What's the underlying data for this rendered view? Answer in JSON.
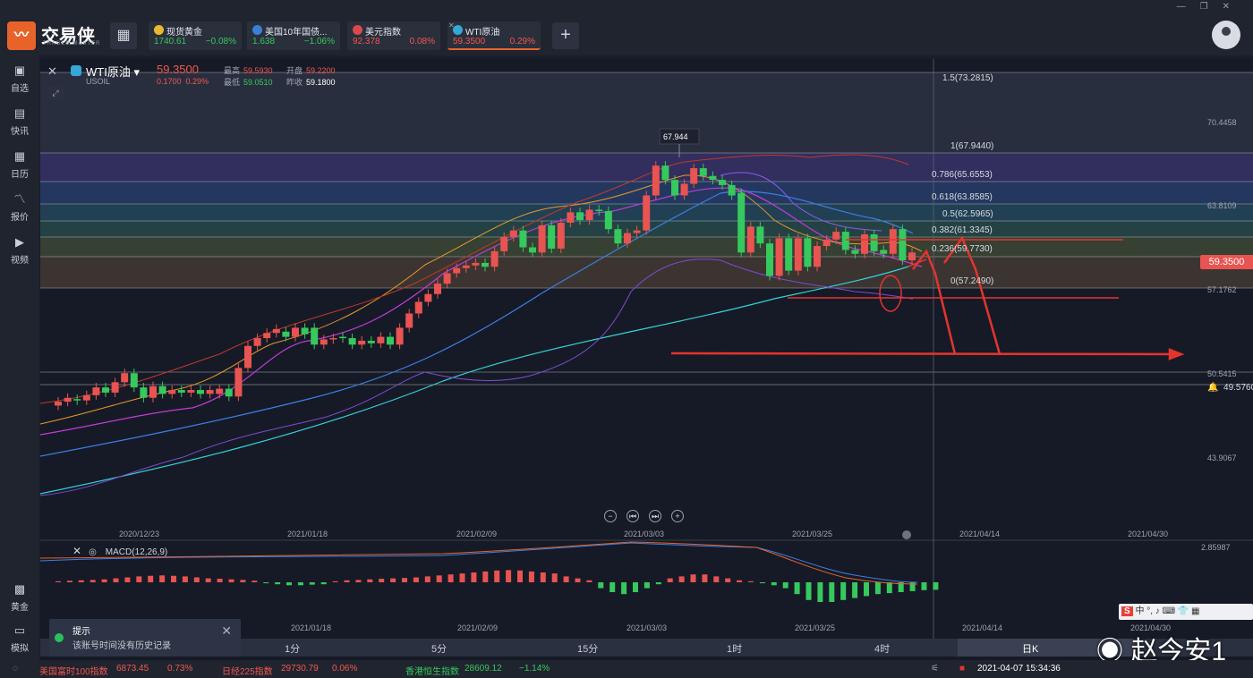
{
  "app": {
    "name": "交易侠",
    "subtitle": "TRADER MASTER"
  },
  "tabs": [
    {
      "name": "现货黄金",
      "price": "1740.61",
      "change": "−0.08%",
      "price_color": "#36c95d",
      "change_color": "#36c95d",
      "icon_color": "#e8b833",
      "active": false
    },
    {
      "name": "美国10年国债...",
      "price": "1.638",
      "change": "−1.06%",
      "price_color": "#36c95d",
      "change_color": "#36c95d",
      "icon_color": "#3b7fd6",
      "active": false
    },
    {
      "name": "美元指数",
      "price": "92.378",
      "change": "0.08%",
      "price_color": "#f0584e",
      "change_color": "#f0584e",
      "icon_color": "#d84a4a",
      "active": false
    },
    {
      "name": "WTI原油",
      "price": "59.3500",
      "change": "0.29%",
      "price_color": "#f0584e",
      "change_color": "#f0584e",
      "icon_color": "#35a7d8",
      "active": true
    }
  ],
  "sidebar": [
    {
      "label": "自选",
      "icon": "star-bookmark-icon"
    },
    {
      "label": "快讯",
      "icon": "news-icon"
    },
    {
      "label": "日历",
      "icon": "calendar-icon"
    },
    {
      "label": "报价",
      "icon": "quote-chart-icon"
    },
    {
      "label": "视频",
      "icon": "video-icon"
    },
    {
      "label": "黄金",
      "icon": "gold-icon"
    },
    {
      "label": "模拟",
      "icon": "simulate-icon"
    }
  ],
  "header": {
    "symbol": "WTI原油",
    "code": "USOIL",
    "price": "59.3500",
    "change_abs": "0.1700",
    "change_pct": "0.29%",
    "high_label": "最高",
    "high": "59.5930",
    "open_label": "开盘",
    "open": "59.2200",
    "low_label": "最低",
    "low": "59.0510",
    "prev_label": "昨收",
    "prev": "59.1800"
  },
  "price_axis": [
    "70.4458",
    "63.8109",
    "57.1762",
    "50.5415",
    "43.9067"
  ],
  "fib_levels": [
    {
      "label": "1.5(73.2815)"
    },
    {
      "label": "1(67.9440)"
    },
    {
      "label": "0.786(65.6553)"
    },
    {
      "label": "0.618(63.8585)"
    },
    {
      "label": "0.5(62.5965)"
    },
    {
      "label": "0.382(61.3345)"
    },
    {
      "label": "0.236(59.7730)"
    },
    {
      "label": "0(57.2490)"
    }
  ],
  "current_price_tag": "59.3500",
  "alert_price": "49.5760",
  "peak_label": "67.944",
  "dates_main": [
    "2020/12/23",
    "2021/01/18",
    "2021/02/09",
    "2021/03/03",
    "2021/03/25",
    "2021/04/14",
    "2021/04/30"
  ],
  "dates_sub": [
    "2021/01/18",
    "2021/02/09",
    "2021/03/03",
    "2021/03/25",
    "2021/04/14",
    "2021/04/30"
  ],
  "macd": {
    "label": "MACD(12,26,9)",
    "top_value": "2.85987"
  },
  "nav_buttons": [
    "−",
    "⏮",
    "⏭",
    "+"
  ],
  "timeframes": [
    "1分",
    "5分",
    "15分",
    "1时",
    "4时",
    "日K"
  ],
  "toast": {
    "title": "提示",
    "message": "该账号时间没有历史记录"
  },
  "bottom": {
    "items": [
      {
        "name": "美国富时100指数",
        "value": "6873.45",
        "change": "0.73%",
        "color": "#f0584e"
      },
      {
        "name": "日经225指数",
        "value": "29730.79",
        "change": "0.06%",
        "color": "#f0584e"
      },
      {
        "name": "香港恒生指数",
        "value": "28609.12",
        "change": "−1.14%",
        "color": "#36c95d"
      }
    ],
    "datetime": "2021-04-07 15:34:36"
  },
  "watermark": "赵今安1",
  "ime_bar": "中 °, ♪ ⌨ 👕 ▦",
  "chart_data": {
    "type": "candlestick",
    "symbol": "WTI原油",
    "ylim": [
      43.9067,
      73.2815
    ],
    "candles": [
      {
        "o": 47.6,
        "c": 47.9
      },
      {
        "o": 47.9,
        "c": 48.2
      },
      {
        "o": 48.1,
        "c": 48.0
      },
      {
        "o": 48.0,
        "c": 48.4
      },
      {
        "o": 48.4,
        "c": 49.0
      },
      {
        "o": 49.0,
        "c": 48.6
      },
      {
        "o": 48.6,
        "c": 49.4
      },
      {
        "o": 49.4,
        "c": 50.1
      },
      {
        "o": 50.1,
        "c": 49.0
      },
      {
        "o": 49.0,
        "c": 48.2
      },
      {
        "o": 48.2,
        "c": 49.1
      },
      {
        "o": 49.1,
        "c": 48.5
      },
      {
        "o": 48.5,
        "c": 48.8
      },
      {
        "o": 48.8,
        "c": 48.6
      },
      {
        "o": 48.6,
        "c": 48.8
      },
      {
        "o": 48.8,
        "c": 48.5
      },
      {
        "o": 48.5,
        "c": 48.8
      },
      {
        "o": 48.5,
        "c": 48.9
      },
      {
        "o": 48.9,
        "c": 48.3
      },
      {
        "o": 48.3,
        "c": 50.5
      },
      {
        "o": 50.5,
        "c": 52.2
      },
      {
        "o": 52.2,
        "c": 52.8
      },
      {
        "o": 52.8,
        "c": 53.2
      },
      {
        "o": 53.2,
        "c": 53.5
      },
      {
        "o": 53.3,
        "c": 52.9
      },
      {
        "o": 52.9,
        "c": 53.6
      },
      {
        "o": 53.6,
        "c": 53.1
      },
      {
        "o": 53.6,
        "c": 52.3
      },
      {
        "o": 52.3,
        "c": 52.7
      },
      {
        "o": 52.7,
        "c": 52.8
      },
      {
        "o": 52.9,
        "c": 52.8
      },
      {
        "o": 52.8,
        "c": 52.3
      },
      {
        "o": 52.3,
        "c": 52.6
      },
      {
        "o": 52.6,
        "c": 52.4
      },
      {
        "o": 52.4,
        "c": 52.9
      },
      {
        "o": 52.9,
        "c": 52.3
      },
      {
        "o": 52.3,
        "c": 53.6
      },
      {
        "o": 53.6,
        "c": 54.7
      },
      {
        "o": 54.7,
        "c": 55.6
      },
      {
        "o": 55.6,
        "c": 56.2
      },
      {
        "o": 56.2,
        "c": 57.0
      },
      {
        "o": 57.0,
        "c": 57.8
      },
      {
        "o": 57.8,
        "c": 58.2
      },
      {
        "o": 58.2,
        "c": 58.4
      },
      {
        "o": 58.4,
        "c": 58.6
      },
      {
        "o": 58.6,
        "c": 58.3
      },
      {
        "o": 58.3,
        "c": 59.5
      },
      {
        "o": 59.5,
        "c": 60.6
      },
      {
        "o": 60.6,
        "c": 61.1
      },
      {
        "o": 61.1,
        "c": 59.8
      },
      {
        "o": 59.8,
        "c": 59.4
      },
      {
        "o": 59.4,
        "c": 61.5
      },
      {
        "o": 61.5,
        "c": 59.7
      },
      {
        "o": 59.7,
        "c": 61.7
      },
      {
        "o": 61.7,
        "c": 62.5
      },
      {
        "o": 62.5,
        "c": 61.9
      },
      {
        "o": 61.9,
        "c": 62.7
      },
      {
        "o": 62.7,
        "c": 62.6
      },
      {
        "o": 62.6,
        "c": 61.2
      },
      {
        "o": 61.2,
        "c": 60.1
      },
      {
        "o": 60.1,
        "c": 60.9
      },
      {
        "o": 60.9,
        "c": 61.1
      },
      {
        "o": 61.1,
        "c": 63.8
      },
      {
        "o": 63.8,
        "c": 66.1
      },
      {
        "o": 66.1,
        "c": 65.0
      },
      {
        "o": 65.0,
        "c": 63.8
      },
      {
        "o": 63.8,
        "c": 64.7
      },
      {
        "o": 64.7,
        "c": 65.9
      },
      {
        "o": 65.9,
        "c": 65.3
      },
      {
        "o": 65.3,
        "c": 65.0
      },
      {
        "o": 65.0,
        "c": 64.6
      },
      {
        "o": 64.6,
        "c": 63.8
      },
      {
        "o": 64.0,
        "c": 59.4
      },
      {
        "o": 59.4,
        "c": 61.4
      },
      {
        "o": 61.4,
        "c": 60.1
      },
      {
        "o": 60.1,
        "c": 57.6
      },
      {
        "o": 57.6,
        "c": 60.5
      },
      {
        "o": 60.5,
        "c": 58.0
      },
      {
        "o": 58.0,
        "c": 60.5
      },
      {
        "o": 60.5,
        "c": 58.3
      },
      {
        "o": 58.3,
        "c": 59.9
      },
      {
        "o": 59.9,
        "c": 60.4
      },
      {
        "o": 60.4,
        "c": 61.0
      },
      {
        "o": 61.0,
        "c": 59.6
      },
      {
        "o": 59.6,
        "c": 59.3
      },
      {
        "o": 59.3,
        "c": 60.8
      },
      {
        "o": 60.8,
        "c": 59.5
      },
      {
        "o": 59.6,
        "c": 59.3
      },
      {
        "o": 59.3,
        "c": 61.2
      },
      {
        "o": 61.2,
        "c": 58.8
      },
      {
        "o": 58.8,
        "c": 59.4
      }
    ],
    "macd_hist": [
      0.05,
      0.08,
      0.1,
      0.12,
      0.15,
      0.2,
      0.25,
      0.3,
      0.33,
      0.35,
      0.33,
      0.3,
      0.25,
      0.2,
      0.18,
      0.15,
      0.12,
      0.08,
      -0.05,
      -0.1,
      -0.15,
      -0.15,
      -0.12,
      -0.1,
      0.05,
      0.1,
      0.12,
      0.15,
      0.18,
      0.2,
      0.22,
      0.25,
      0.3,
      0.35,
      0.4,
      0.45,
      0.5,
      0.55,
      0.6,
      0.62,
      0.6,
      0.55,
      0.5,
      0.45,
      0.3,
      0.2,
      0.1,
      -0.3,
      -0.5,
      -0.6,
      -0.5,
      -0.3,
      -0.1,
      0.2,
      0.3,
      0.4,
      0.4,
      0.3,
      0.2,
      0.1,
      0.05,
      -0.05,
      -0.15,
      -0.3,
      -0.6,
      -0.9,
      -1.0,
      -1.0,
      -0.9,
      -0.8,
      -0.7,
      -0.6,
      -0.55,
      -0.5,
      -0.45,
      -0.4,
      -0.38
    ]
  }
}
